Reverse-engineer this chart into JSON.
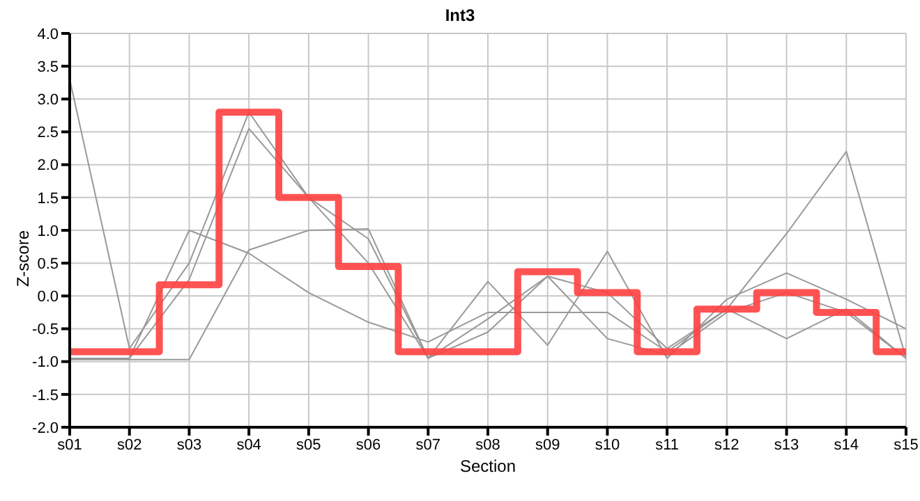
{
  "chart_data": {
    "type": "line",
    "title": "Int3",
    "xlabel": "Section",
    "ylabel": "Z-score",
    "categories": [
      "s01",
      "s02",
      "s03",
      "s04",
      "s05",
      "s06",
      "s07",
      "s08",
      "s09",
      "s10",
      "s11",
      "s12",
      "s13",
      "s14",
      "s15"
    ],
    "series": [
      {
        "color": "#999999",
        "values": [
          3.3,
          -0.8,
          0.5,
          2.8,
          1.5,
          0.87,
          -0.95,
          -0.35,
          0.3,
          0.05,
          -0.8,
          -0.2,
          0.95,
          2.2,
          -0.95
        ]
      },
      {
        "color": "#999999",
        "values": [
          -0.97,
          -0.97,
          -0.97,
          0.7,
          1.0,
          1.02,
          -0.95,
          0.22,
          -0.75,
          0.68,
          -0.95,
          -0.05,
          0.35,
          -0.05,
          -0.5
        ]
      },
      {
        "color": "#999999",
        "values": [
          -0.95,
          -0.95,
          1.0,
          0.65,
          0.05,
          -0.4,
          -0.7,
          -0.25,
          -0.25,
          -0.25,
          -0.85,
          -0.2,
          -0.65,
          -0.2,
          -0.95
        ]
      },
      {
        "color": "#999999",
        "values": [
          -0.95,
          -0.95,
          0.25,
          2.55,
          1.5,
          0.5,
          -0.95,
          -0.55,
          0.3,
          -0.65,
          -0.9,
          -0.25,
          0.05,
          -0.25,
          -0.95
        ]
      },
      {
        "type": "step",
        "color": "#ff4040",
        "values": [
          -0.85,
          -0.85,
          0.17,
          2.8,
          1.5,
          0.45,
          -0.85,
          -0.85,
          0.37,
          0.05,
          -0.85,
          -0.2,
          0.05,
          -0.25,
          -0.85
        ]
      }
    ],
    "ylim": [
      -2,
      4
    ],
    "yticks": [
      {
        "value": -2,
        "label": "-2.0"
      },
      {
        "value": -1.5,
        "label": "-1.5"
      },
      {
        "value": -1,
        "label": "-1.0"
      },
      {
        "value": -0.5,
        "label": "-0.5"
      },
      {
        "value": 0,
        "label": "0.0"
      },
      {
        "value": 0.5,
        "label": "0.5"
      },
      {
        "value": 1,
        "label": "1.0"
      },
      {
        "value": 1.5,
        "label": "1.5"
      },
      {
        "value": 2,
        "label": "2.0"
      },
      {
        "value": 2.5,
        "label": "2.5"
      },
      {
        "value": 3,
        "label": "3.0"
      },
      {
        "value": 3.5,
        "label": "3.5"
      },
      {
        "value": 4,
        "label": "4.0"
      }
    ],
    "grid": true,
    "marker": "none"
  }
}
